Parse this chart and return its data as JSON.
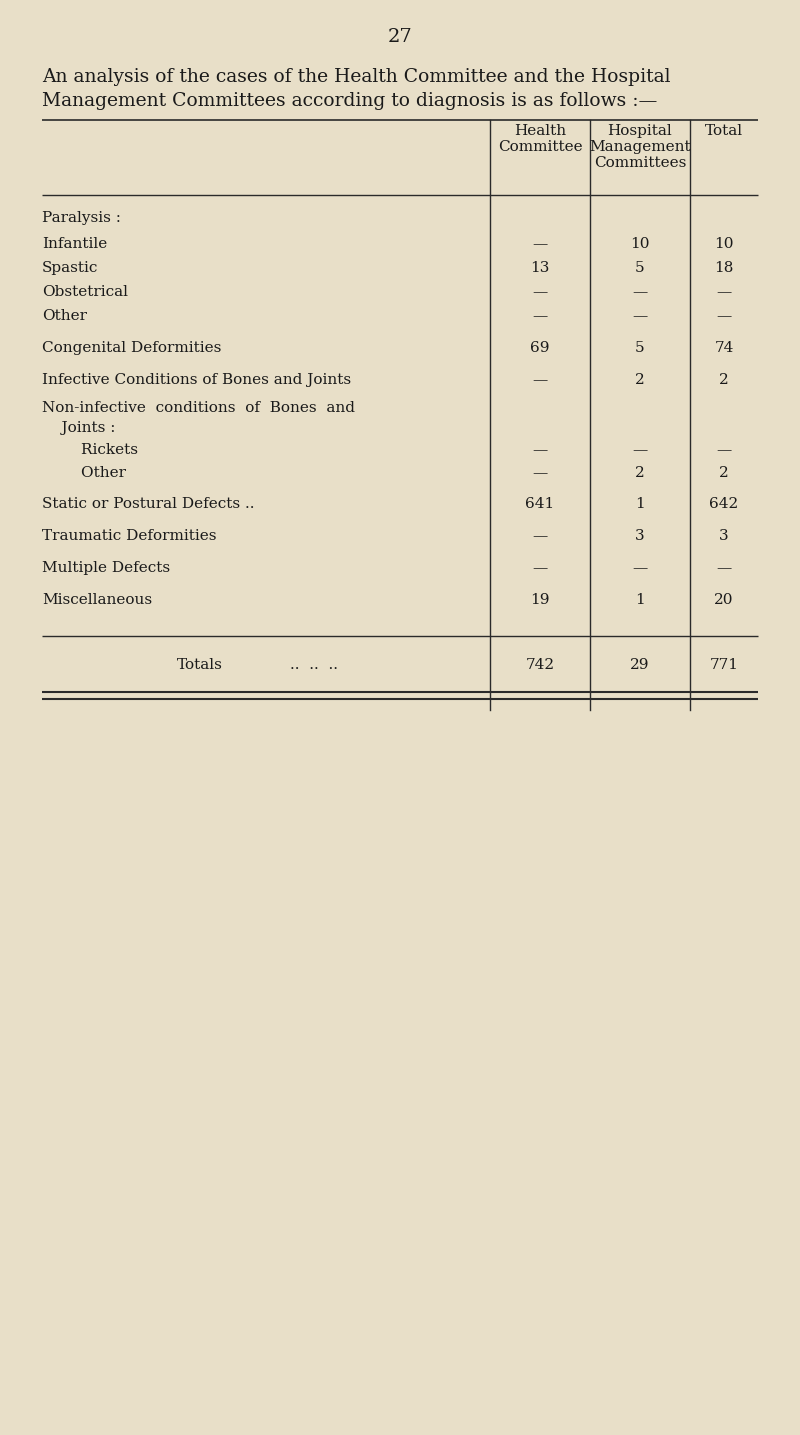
{
  "page_number": "27",
  "intro_line1": "An analysis of the cases of the Health Committee and the Hospital",
  "intro_line2": "Management Committees according to diagnosis is as follows :—",
  "bg_color": "#e8dfc8",
  "text_color": "#1a1a1a",
  "rows": [
    {
      "label": "Paralysis :",
      "indent": 0,
      "hc": "",
      "hosp": "",
      "total": "",
      "dots": ""
    },
    {
      "label": "Infantile",
      "indent": 1,
      "hc": "—",
      "hosp": "10",
      "total": "10",
      "dots": "..  ..  ..  .."
    },
    {
      "label": "Spastic",
      "indent": 1,
      "hc": "13",
      "hosp": "5",
      "total": "18",
      "dots": "..  ..  ..  .."
    },
    {
      "label": "Obstetrical",
      "indent": 1,
      "hc": "—",
      "hosp": "—",
      "total": "—",
      "dots": "..  ..  ..  .."
    },
    {
      "label": "Other",
      "indent": 1,
      "hc": "—",
      "hosp": "—",
      "total": "—",
      "dots": "..  ..  ..  .."
    },
    {
      "label": "Congenital Deformities",
      "indent": 0,
      "hc": "69",
      "hosp": "5",
      "total": "74",
      "dots": "..  ..  ..  .."
    },
    {
      "label": "Infective Conditions of Bones and Joints",
      "indent": 0,
      "hc": "—",
      "hosp": "2",
      "total": "2",
      "dots": ""
    },
    {
      "label": "Non-infective  conditions  of  Bones  and",
      "indent": 0,
      "hc": "",
      "hosp": "",
      "total": "",
      "dots": ""
    },
    {
      "label": "    Joints :",
      "indent": 0,
      "hc": "",
      "hosp": "",
      "total": "",
      "dots": ""
    },
    {
      "label": "        Rickets",
      "indent": 0,
      "hc": "—",
      "hosp": "—",
      "total": "—",
      "dots": "..  ..  ..  .."
    },
    {
      "label": "        Other",
      "indent": 0,
      "hc": "—",
      "hosp": "2",
      "total": "2",
      "dots": "..  ..  ..  .."
    },
    {
      "label": "Static or Postural Defects ..",
      "indent": 0,
      "hc": "641",
      "hosp": "1",
      "total": "642",
      "dots": "..  ..  .."
    },
    {
      "label": "Traumatic Deformities",
      "indent": 0,
      "hc": "—",
      "hosp": "3",
      "total": "3",
      "dots": "..  ..  ..  .."
    },
    {
      "label": "Multiple Defects",
      "indent": 0,
      "hc": "—",
      "hosp": "—",
      "total": "—",
      "dots": "..  ..  ..  .."
    },
    {
      "label": "Miscellaneous",
      "indent": 0,
      "hc": "19",
      "hosp": "1",
      "total": "20",
      "dots": "..  ..  ..  .."
    }
  ],
  "totals": {
    "label": "Totals",
    "hc": "742",
    "hosp": "29",
    "total": "771"
  },
  "fs_page": 14,
  "fs_intro": 13.5,
  "fs_header": 11,
  "fs_body": 11
}
